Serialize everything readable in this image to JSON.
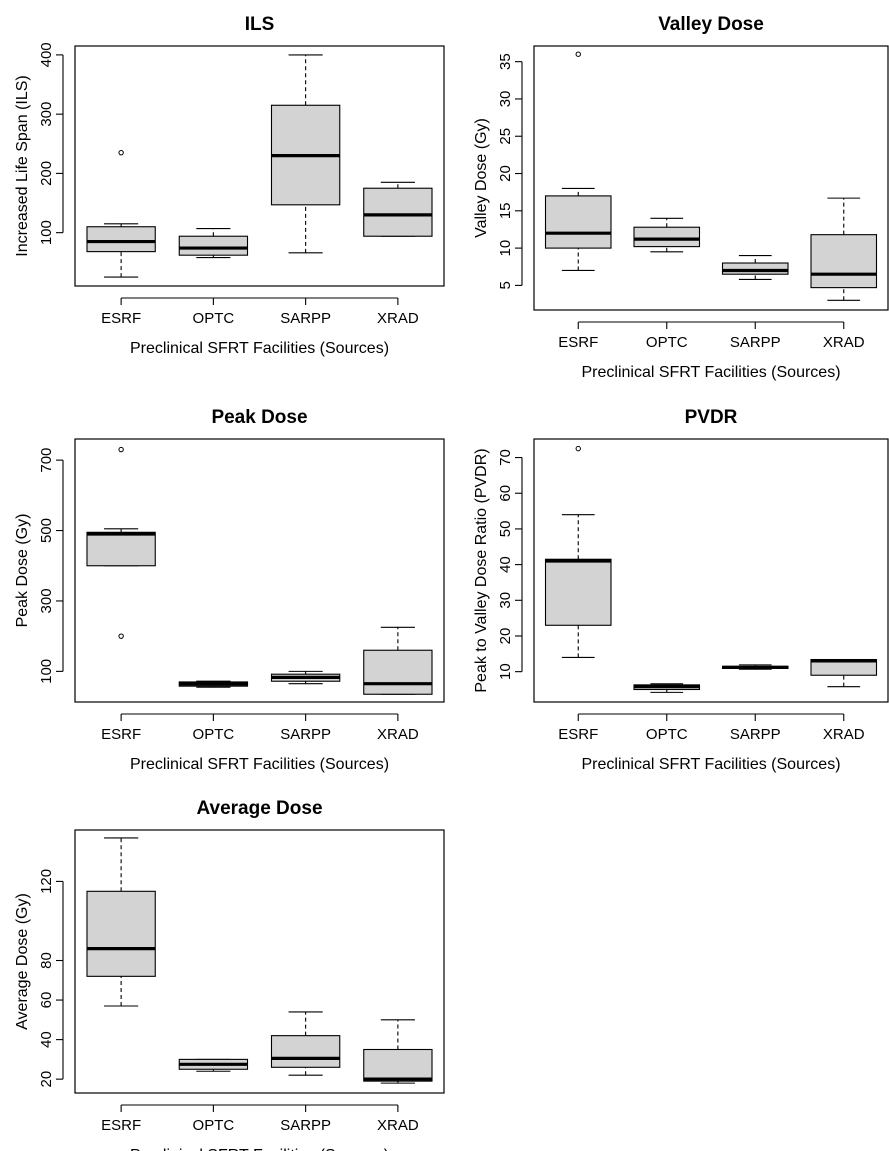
{
  "chart_data": [
    {
      "type": "box",
      "title": "ILS",
      "xlabel": "Preclinical SFRT Facilities (Sources)",
      "ylabel": "Increased Life Span (ILS)",
      "categories": [
        "ESRF",
        "OPTC",
        "SARPP",
        "XRAD"
      ],
      "ylim": [
        10,
        415
      ],
      "yticks": [
        100,
        200,
        300,
        400
      ],
      "boxes": [
        {
          "category": "ESRF",
          "min": 25,
          "q1": 68,
          "median": 85,
          "q3": 110,
          "max": 115,
          "outliers": [
            235
          ]
        },
        {
          "category": "OPTC",
          "min": 58,
          "q1": 62,
          "median": 74,
          "q3": 94,
          "max": 107,
          "outliers": []
        },
        {
          "category": "SARPP",
          "min": 66,
          "q1": 147,
          "median": 230,
          "q3": 315,
          "max": 400,
          "outliers": []
        },
        {
          "category": "XRAD",
          "min": 94,
          "q1": 94,
          "median": 130,
          "q3": 175,
          "max": 185,
          "outliers": []
        }
      ]
    },
    {
      "type": "box",
      "title": "Valley Dose",
      "xlabel": "Preclinical SFRT Facilities (Sources)",
      "ylabel": "Valley Dose (Gy)",
      "categories": [
        "ESRF",
        "OPTC",
        "SARPP",
        "XRAD"
      ],
      "ylim": [
        1.7,
        37.1
      ],
      "yticks": [
        5,
        10,
        15,
        20,
        25,
        30,
        35
      ],
      "boxes": [
        {
          "category": "ESRF",
          "min": 7,
          "q1": 10,
          "median": 12,
          "q3": 17,
          "max": 18,
          "outliers": [
            36
          ]
        },
        {
          "category": "OPTC",
          "min": 9.5,
          "q1": 10.2,
          "median": 11.2,
          "q3": 12.8,
          "max": 14,
          "outliers": []
        },
        {
          "category": "SARPP",
          "min": 5.8,
          "q1": 6.5,
          "median": 7,
          "q3": 8,
          "max": 9,
          "outliers": []
        },
        {
          "category": "XRAD",
          "min": 3,
          "q1": 4.7,
          "median": 6.5,
          "q3": 11.8,
          "max": 16.7,
          "outliers": []
        }
      ]
    },
    {
      "type": "box",
      "title": "Peak Dose",
      "xlabel": "Preclinical SFRT Facilities (Sources)",
      "ylabel": "Peak Dose (Gy)",
      "categories": [
        "ESRF",
        "OPTC",
        "SARPP",
        "XRAD"
      ],
      "ylim": [
        13,
        760
      ],
      "yticks": [
        100,
        300,
        500,
        700
      ],
      "boxes": [
        {
          "category": "ESRF",
          "min": 400,
          "q1": 400,
          "median": 490,
          "q3": 495,
          "max": 505,
          "outliers": [
            200,
            730
          ]
        },
        {
          "category": "OPTC",
          "min": 55,
          "q1": 58,
          "median": 64,
          "q3": 70,
          "max": 72,
          "outliers": []
        },
        {
          "category": "SARPP",
          "min": 65,
          "q1": 72,
          "median": 83,
          "q3": 92,
          "max": 100,
          "outliers": []
        },
        {
          "category": "XRAD",
          "min": 35,
          "q1": 35,
          "median": 65,
          "q3": 160,
          "max": 225,
          "outliers": []
        }
      ]
    },
    {
      "type": "box",
      "title": "PVDR",
      "xlabel": "Preclinical SFRT Facilities (Sources)",
      "ylabel": "Peak to Valley Dose Ratio (PVDR)",
      "categories": [
        "ESRF",
        "OPTC",
        "SARPP",
        "XRAD"
      ],
      "ylim": [
        1.5,
        75.2
      ],
      "yticks": [
        10,
        20,
        30,
        40,
        50,
        60,
        70
      ],
      "boxes": [
        {
          "category": "ESRF",
          "min": 14,
          "q1": 23,
          "median": 41,
          "q3": 41.5,
          "max": 54,
          "outliers": [
            72.5
          ]
        },
        {
          "category": "OPTC",
          "min": 4.2,
          "q1": 5,
          "median": 5.8,
          "q3": 6.3,
          "max": 6.6,
          "outliers": []
        },
        {
          "category": "SARPP",
          "min": 10.7,
          "q1": 10.9,
          "median": 11.2,
          "q3": 11.5,
          "max": 11.9,
          "outliers": []
        },
        {
          "category": "XRAD",
          "min": 5.8,
          "q1": 9,
          "median": 13,
          "q3": 13.4,
          "max": 13.4,
          "outliers": []
        }
      ]
    },
    {
      "type": "box",
      "title": "Average Dose",
      "xlabel": "Preclinical SFRT Facilities (Sources)",
      "ylabel": "Average Dose (Gy)",
      "categories": [
        "ESRF",
        "OPTC",
        "SARPP",
        "XRAD"
      ],
      "ylim": [
        13,
        146
      ],
      "yticks": [
        20,
        40,
        60,
        80,
        120
      ],
      "boxes": [
        {
          "category": "ESRF",
          "min": 57,
          "q1": 72,
          "median": 86,
          "q3": 115,
          "max": 142,
          "outliers": []
        },
        {
          "category": "OPTC",
          "min": 24,
          "q1": 25,
          "median": 27.5,
          "q3": 30,
          "max": 30,
          "outliers": []
        },
        {
          "category": "SARPP",
          "min": 22,
          "q1": 26,
          "median": 30.5,
          "q3": 42,
          "max": 54,
          "outliers": []
        },
        {
          "category": "XRAD",
          "min": 18,
          "q1": 19,
          "median": 20,
          "q3": 35,
          "max": 50,
          "outliers": []
        }
      ]
    }
  ]
}
